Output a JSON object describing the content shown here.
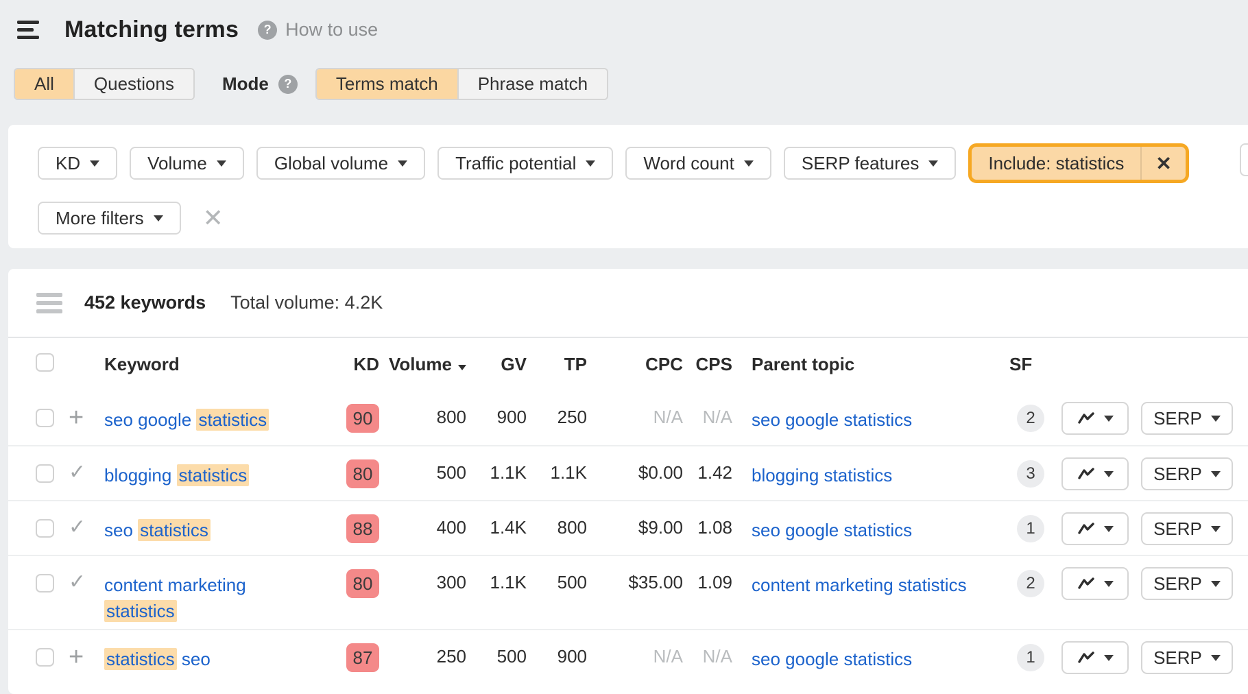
{
  "colors": {
    "accent_orange": "#f6a823",
    "selected_tab_bg": "#fbd7a2",
    "keyword_highlight_bg": "#fcdcaa",
    "kd_badge_bg": "#f48989",
    "link_blue": "#1c63cc",
    "page_bg": "#eceef0"
  },
  "header": {
    "title": "Matching terms",
    "help_icon": "?",
    "help_label": "How to use"
  },
  "toolbar": {
    "type_tabs": [
      {
        "label": "All",
        "selected": true
      },
      {
        "label": "Questions",
        "selected": false
      }
    ],
    "mode_label": "Mode",
    "mode_help_icon": "?",
    "match_tabs": [
      {
        "label": "Terms match",
        "selected": true
      },
      {
        "label": "Phrase match",
        "selected": false
      }
    ]
  },
  "filters": {
    "buttons": [
      "KD",
      "Volume",
      "Global volume",
      "Traffic potential",
      "Word count",
      "SERP features"
    ],
    "include_filter": "Include: statistics",
    "include_close": "✕",
    "more_filters": "More filters",
    "clear_all": "✕"
  },
  "results": {
    "count": "452 keywords",
    "total_volume": "Total volume: 4.2K",
    "columns": {
      "keyword": "Keyword",
      "kd": "KD",
      "volume": "Volume",
      "gv": "GV",
      "tp": "TP",
      "cpc": "CPC",
      "cps": "CPS",
      "parent": "Parent topic",
      "sf": "SF"
    },
    "serp_label": "SERP",
    "plus_icon": "+",
    "check_icon": "✓",
    "rows": [
      {
        "action": "plus",
        "keyword": [
          {
            "t": "seo google ",
            "hl": false
          },
          {
            "t": "statistics",
            "hl": true
          }
        ],
        "kd": "90",
        "volume": "800",
        "gv": "900",
        "tp": "250",
        "cpc": "N/A",
        "cps": "N/A",
        "parent": "seo google statistics",
        "sf": "2",
        "tall": false
      },
      {
        "action": "check",
        "keyword": [
          {
            "t": "blogging ",
            "hl": false
          },
          {
            "t": "statistics",
            "hl": true
          }
        ],
        "kd": "80",
        "volume": "500",
        "gv": "1.1K",
        "tp": "1.1K",
        "cpc": "$0.00",
        "cps": "1.42",
        "parent": "blogging statistics",
        "sf": "3",
        "tall": false
      },
      {
        "action": "check",
        "keyword": [
          {
            "t": "seo ",
            "hl": false
          },
          {
            "t": "statistics",
            "hl": true
          }
        ],
        "kd": "88",
        "volume": "400",
        "gv": "1.4K",
        "tp": "800",
        "cpc": "$9.00",
        "cps": "1.08",
        "parent": "seo google statistics",
        "sf": "1",
        "tall": false
      },
      {
        "action": "check",
        "keyword": [
          {
            "t": "content marketing",
            "hl": false
          },
          {
            "br": true
          },
          {
            "t": "statistics",
            "hl": true
          }
        ],
        "kd": "80",
        "volume": "300",
        "gv": "1.1K",
        "tp": "500",
        "cpc": "$35.00",
        "cps": "1.09",
        "parent": "content marketing statistics",
        "sf": "2",
        "tall": true
      },
      {
        "action": "plus",
        "keyword": [
          {
            "t": "statistics",
            "hl": true
          },
          {
            "t": " seo",
            "hl": false
          }
        ],
        "kd": "87",
        "volume": "250",
        "gv": "500",
        "tp": "900",
        "cpc": "N/A",
        "cps": "N/A",
        "parent": "seo google statistics",
        "sf": "1",
        "tall": false
      }
    ]
  }
}
